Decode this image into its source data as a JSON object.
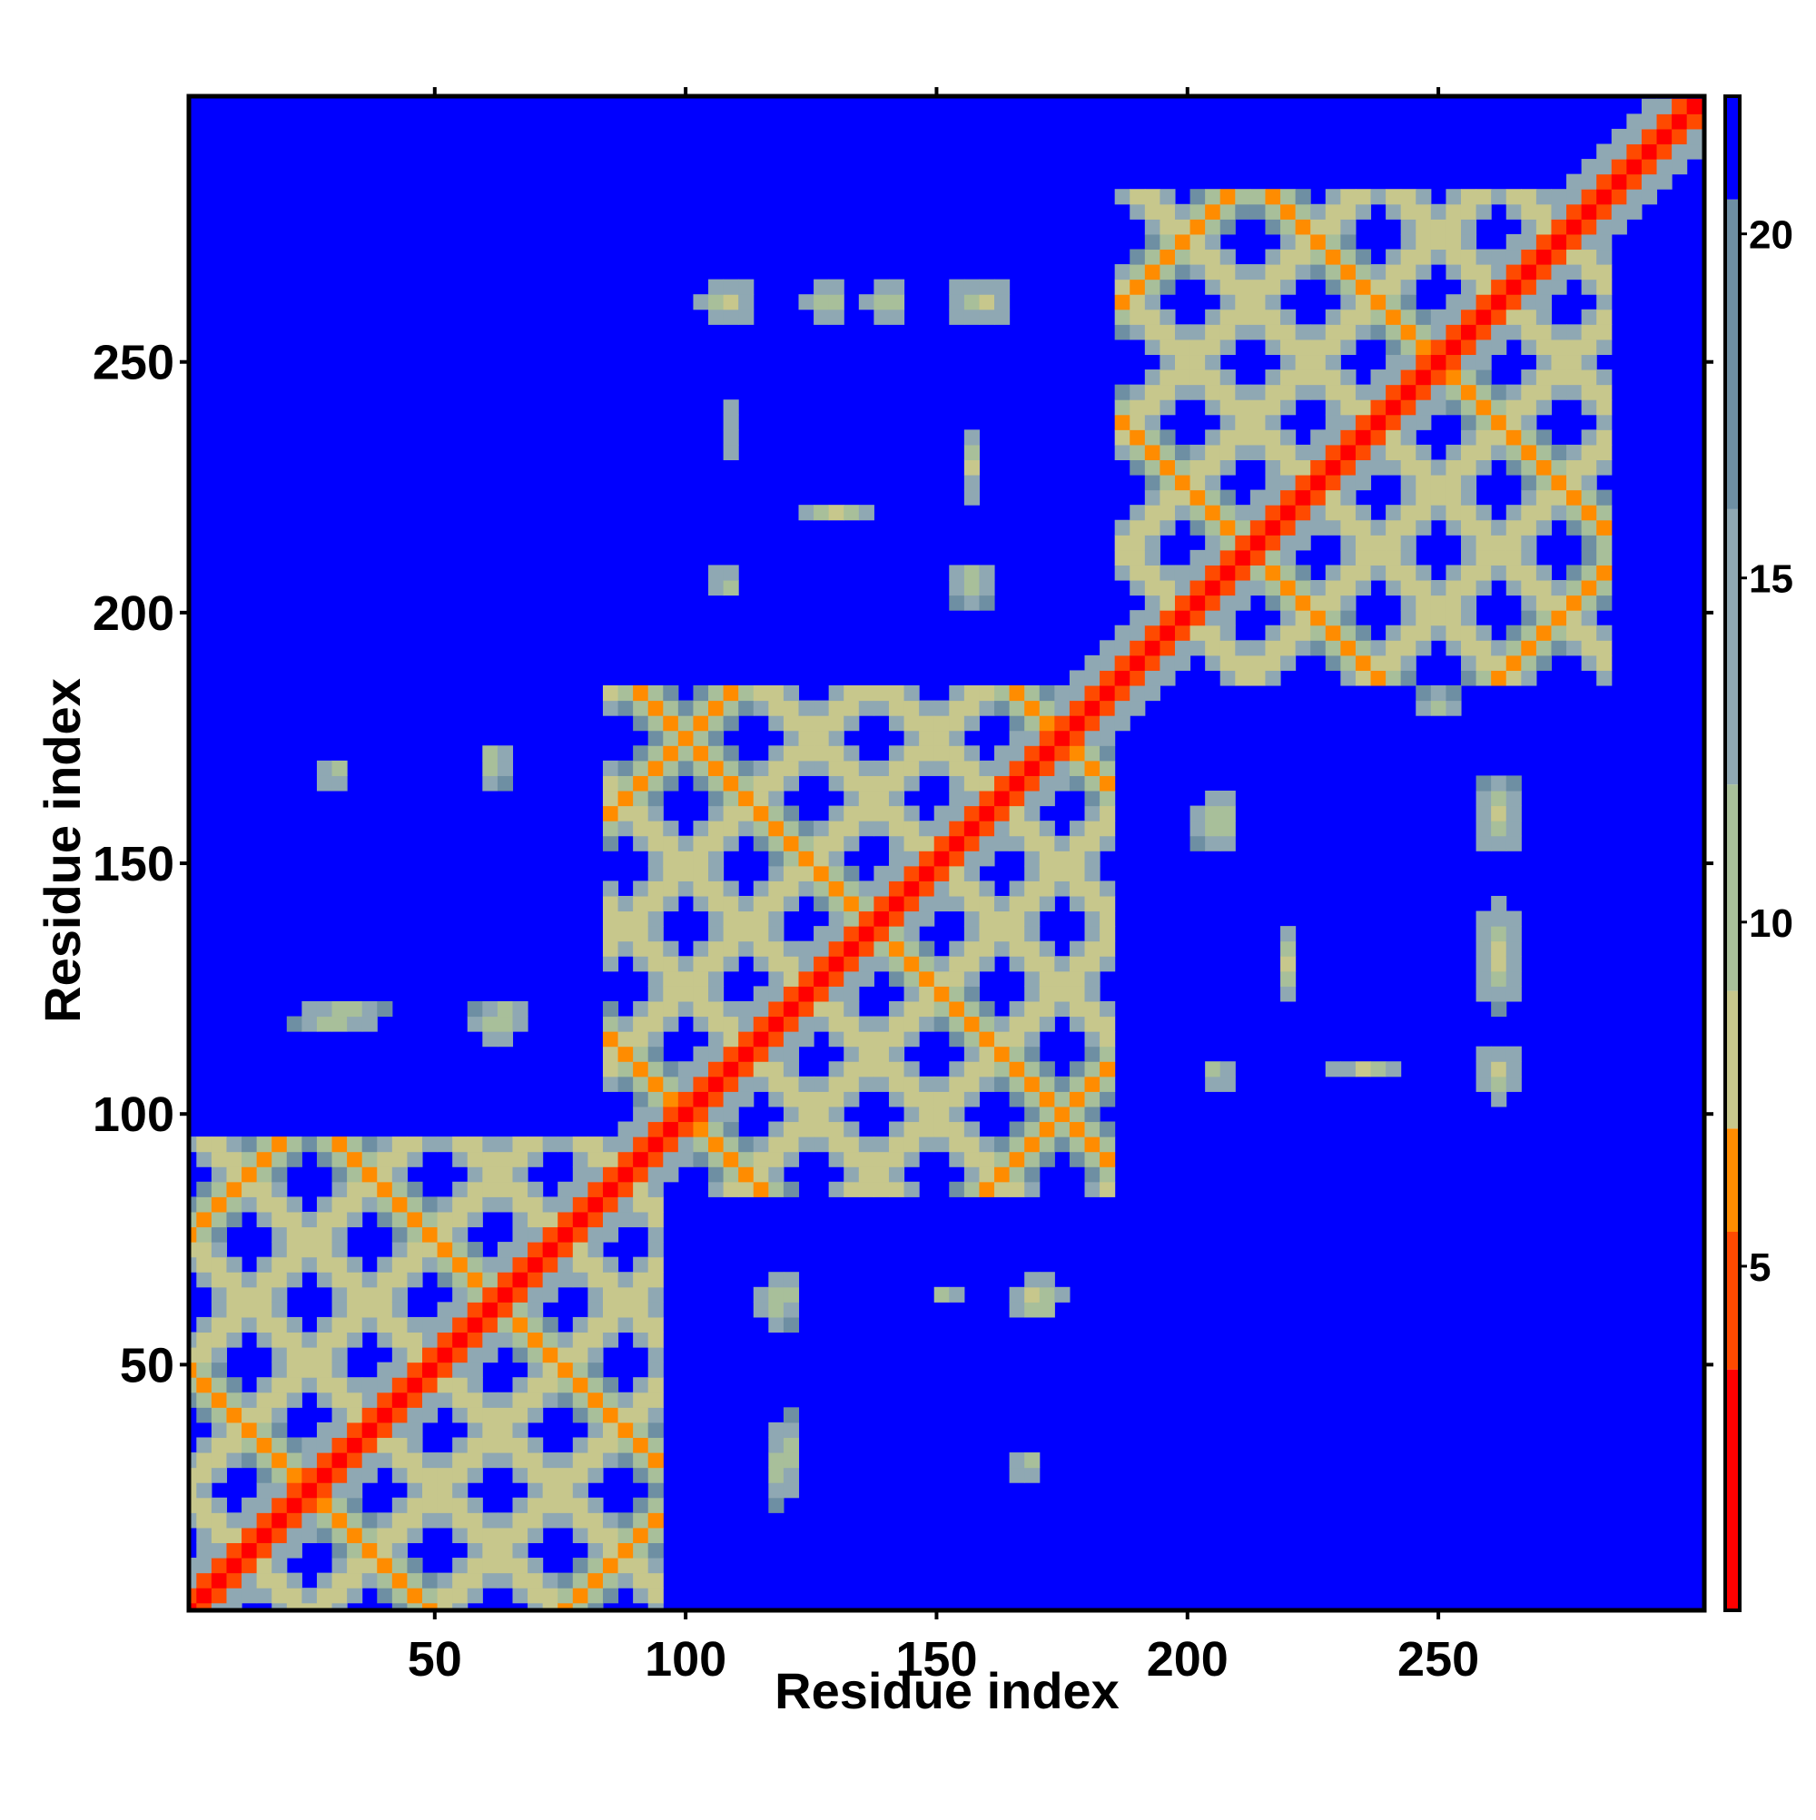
{
  "chart_data": {
    "type": "heatmap",
    "title": "",
    "xlabel": "Residue index",
    "ylabel": "Residue index",
    "xlim": [
      1,
      303
    ],
    "ylim": [
      1,
      303
    ],
    "x_ticks": [
      50,
      100,
      150,
      200,
      250
    ],
    "y_ticks": [
      50,
      100,
      150,
      200,
      250
    ],
    "x_tick_labels": [
      "50",
      "100",
      "150",
      "200",
      "250"
    ],
    "y_tick_labels": [
      "50",
      "100",
      "150",
      "200",
      "250"
    ],
    "colorbar": {
      "range": [
        0,
        22
      ],
      "ticks": [
        5,
        10,
        15,
        20
      ],
      "tick_labels": [
        "5",
        "10",
        "15",
        "20"
      ],
      "bands": [
        {
          "from": 0,
          "to": 3.5,
          "color": "#ff0000"
        },
        {
          "from": 3.5,
          "to": 5.5,
          "color": "#ff4a00"
        },
        {
          "from": 5.5,
          "to": 7.0,
          "color": "#ff8c00"
        },
        {
          "from": 7.0,
          "to": 9.0,
          "color": "#c7c78c"
        },
        {
          "from": 9.0,
          "to": 12.0,
          "color": "#a8bf9a"
        },
        {
          "from": 12.0,
          "to": 16.0,
          "color": "#8fa8b3"
        },
        {
          "from": 16.0,
          "to": 20.5,
          "color": "#6e8fa3"
        },
        {
          "from": 20.5,
          "to": 22.0,
          "color": "#0000ff"
        }
      ]
    },
    "background_value": 22,
    "diagonal": {
      "from": 1,
      "to": 303,
      "value": 1
    },
    "domains": [
      {
        "from": 1,
        "to": 95
      },
      {
        "from": 85,
        "to": 185
      },
      {
        "from": 185,
        "to": 285
      }
    ],
    "contact_patches": [
      {
        "x": 63,
        "y": 119,
        "rx": 6,
        "ry": 5
      },
      {
        "x": 119,
        "y": 63,
        "rx": 5,
        "ry": 6
      },
      {
        "x": 30,
        "y": 119,
        "rx": 9,
        "ry": 3
      },
      {
        "x": 119,
        "y": 30,
        "rx": 3,
        "ry": 9
      },
      {
        "x": 62,
        "y": 170,
        "rx": 4,
        "ry": 5
      },
      {
        "x": 170,
        "y": 62,
        "rx": 5,
        "ry": 4
      },
      {
        "x": 30,
        "y": 168,
        "rx": 4,
        "ry": 3
      },
      {
        "x": 168,
        "y": 30,
        "rx": 3,
        "ry": 4
      },
      {
        "x": 120,
        "y": 33,
        "rx": 4,
        "ry": 8
      },
      {
        "x": 33,
        "y": 120,
        "rx": 8,
        "ry": 4
      },
      {
        "x": 170,
        "y": 64,
        "rx": 6,
        "ry": 4
      },
      {
        "x": 152,
        "y": 64,
        "rx": 4,
        "ry": 2
      },
      {
        "x": 108,
        "y": 262,
        "rx": 6,
        "ry": 5
      },
      {
        "x": 262,
        "y": 108,
        "rx": 5,
        "ry": 6
      },
      {
        "x": 128,
        "y": 262,
        "rx": 5,
        "ry": 5
      },
      {
        "x": 140,
        "y": 262,
        "rx": 5,
        "ry": 5
      },
      {
        "x": 159,
        "y": 262,
        "rx": 7,
        "ry": 6
      },
      {
        "x": 262,
        "y": 159,
        "rx": 6,
        "ry": 7
      },
      {
        "x": 108,
        "y": 206,
        "rx": 4,
        "ry": 4
      },
      {
        "x": 206,
        "y": 108,
        "rx": 4,
        "ry": 4
      },
      {
        "x": 157,
        "y": 206,
        "rx": 6,
        "ry": 5
      },
      {
        "x": 206,
        "y": 157,
        "rx": 5,
        "ry": 6
      },
      {
        "x": 262,
        "y": 160,
        "rx": 6,
        "ry": 7
      },
      {
        "x": 262,
        "y": 132,
        "rx": 5,
        "ry": 12
      },
      {
        "x": 262,
        "y": 109,
        "rx": 5,
        "ry": 5
      },
      {
        "x": 236,
        "y": 109,
        "rx": 8,
        "ry": 2
      },
      {
        "x": 206,
        "y": 160,
        "rx": 5,
        "ry": 5
      },
      {
        "x": 250,
        "y": 182,
        "rx": 4,
        "ry": 4
      },
      {
        "x": 250,
        "y": 182,
        "rx": 4,
        "ry": 4
      },
      {
        "x": 108,
        "y": 236,
        "rx": 2,
        "ry": 8
      },
      {
        "x": 157,
        "y": 230,
        "rx": 3,
        "ry": 8
      },
      {
        "x": 130,
        "y": 220,
        "rx": 7,
        "ry": 3
      },
      {
        "x": 220,
        "y": 130,
        "rx": 3,
        "ry": 7
      }
    ]
  }
}
